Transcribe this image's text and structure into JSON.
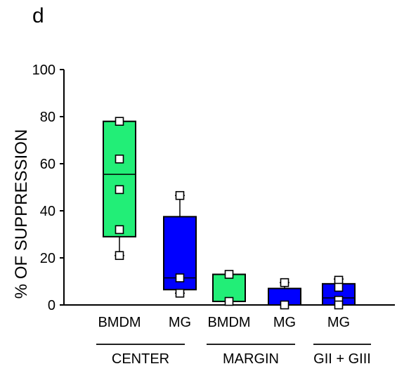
{
  "panel_label": "d",
  "chart_data": {
    "type": "box",
    "ylabel": "% OF SUPPRESSION",
    "xlabel": "",
    "ylim": [
      0,
      100
    ],
    "yticks": [
      0,
      20,
      40,
      60,
      80,
      100
    ],
    "grid": false,
    "legend": "none",
    "colors": {
      "BMDM": "#22ee77",
      "MG": "#0000ff"
    },
    "boxes": [
      {
        "group": "CENTER",
        "label": "BMDM",
        "color": "#22ee77",
        "q1": 29,
        "median": 55.5,
        "q3": 78,
        "whisker_low": 21,
        "whisker_high": 78,
        "points": [
          78,
          62,
          49,
          32,
          21
        ]
      },
      {
        "group": "CENTER",
        "label": "MG",
        "color": "#0000ff",
        "q1": 6.5,
        "median": 11.5,
        "q3": 37.5,
        "whisker_low": 5,
        "whisker_high": 46.5,
        "points": [
          46.5,
          11.5,
          5
        ]
      },
      {
        "group": "MARGIN",
        "label": "BMDM",
        "color": "#22ee77",
        "q1": 1.5,
        "median": 13,
        "q3": 13,
        "whisker_low": 1.5,
        "whisker_high": 13,
        "points": [
          13,
          1.5
        ]
      },
      {
        "group": "MARGIN",
        "label": "MG",
        "color": "#0000ff",
        "q1": 0,
        "median": 7,
        "q3": 7,
        "whisker_low": 0,
        "whisker_high": 9.5,
        "points": [
          9.5,
          0
        ]
      },
      {
        "group": "GII + GIII",
        "label": "MG",
        "color": "#0000ff",
        "q1": 0,
        "median": 3,
        "q3": 9,
        "whisker_low": 0,
        "whisker_high": 11,
        "points": [
          10.5,
          7.5,
          2,
          0
        ]
      }
    ],
    "groups": [
      "CENTER",
      "MARGIN",
      "GII + GIII"
    ]
  }
}
